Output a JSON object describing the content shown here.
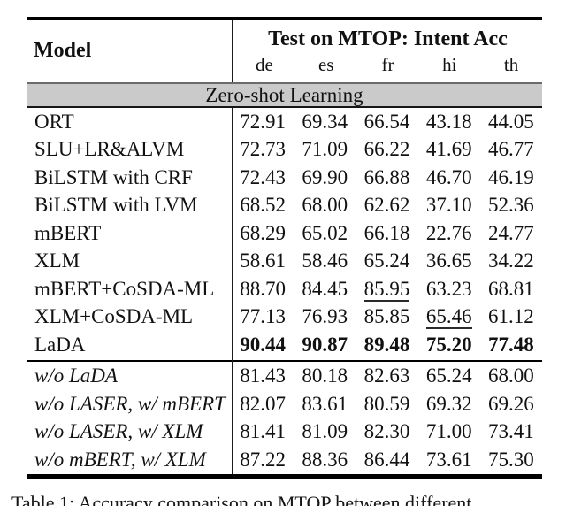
{
  "table": {
    "header": {
      "model_col": "Model",
      "group_title": "Test on MTOP: Intent Acc",
      "lang_cols": [
        "de",
        "es",
        "fr",
        "hi",
        "th"
      ]
    },
    "section_banner": "Zero-shot Learning",
    "rows": [
      {
        "label": "ORT",
        "values": [
          "72.91",
          "69.34",
          "66.54",
          "43.18",
          "44.05"
        ]
      },
      {
        "label": "SLU+LR&ALVM",
        "values": [
          "72.73",
          "71.09",
          "66.22",
          "41.69",
          "46.77"
        ]
      },
      {
        "label": "BiLSTM with CRF",
        "values": [
          "72.43",
          "69.90",
          "66.88",
          "46.70",
          "46.19"
        ]
      },
      {
        "label": "BiLSTM with LVM",
        "values": [
          "68.52",
          "68.00",
          "62.62",
          "37.10",
          "52.36"
        ]
      },
      {
        "label": "mBERT",
        "values": [
          "68.29",
          "65.02",
          "66.18",
          "22.76",
          "24.77"
        ]
      },
      {
        "label": "XLM",
        "values": [
          "58.61",
          "58.46",
          "65.24",
          "36.65",
          "34.22"
        ]
      },
      {
        "label": "mBERT+CoSDA-ML",
        "values": [
          "88.70",
          "84.45",
          "85.95",
          "63.23",
          "68.81"
        ],
        "underline_cols": [
          2
        ]
      },
      {
        "label": "XLM+CoSDA-ML",
        "values": [
          "77.13",
          "76.93",
          "85.85",
          "65.46",
          "61.12"
        ],
        "underline_cols": [
          3
        ]
      },
      {
        "label": "LaDA",
        "values": [
          "90.44",
          "90.87",
          "89.48",
          "75.20",
          "77.48"
        ],
        "bold_values": true
      },
      {
        "label": "w/o LaDA",
        "values": [
          "81.43",
          "80.18",
          "82.63",
          "65.24",
          "68.00"
        ],
        "italic_label": true,
        "section": "ablation"
      },
      {
        "label": "w/o LASER, w/ mBERT",
        "values": [
          "82.07",
          "83.61",
          "80.59",
          "69.32",
          "69.26"
        ],
        "italic_label": true,
        "section": "ablation"
      },
      {
        "label": "w/o LASER, w/ XLM",
        "values": [
          "81.41",
          "81.09",
          "82.30",
          "71.00",
          "73.41"
        ],
        "italic_label": true,
        "section": "ablation"
      },
      {
        "label": "w/o mBERT, w/ XLM",
        "values": [
          "87.22",
          "88.36",
          "86.44",
          "73.61",
          "75.30"
        ],
        "italic_label": true,
        "section": "ablation"
      }
    ]
  },
  "caption": "Table 1: Accuracy comparison on MTOP between different",
  "colors": {
    "banner_bg": "#cacaca",
    "rule": "#000000",
    "text": "#111111"
  }
}
